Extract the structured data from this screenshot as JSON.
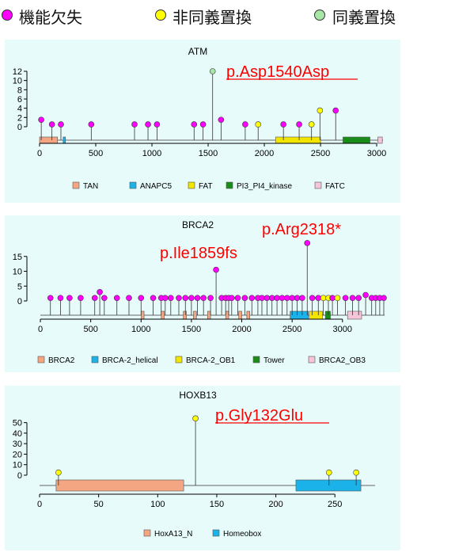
{
  "legend": [
    {
      "label": "機能欠失",
      "color": "#ff00ff",
      "icon": "magenta-circle-icon"
    },
    {
      "label": "非同義置換",
      "color": "#ffff00",
      "icon": "yellow-circle-icon"
    },
    {
      "label": "同義置換",
      "color": "#a8e6a8",
      "icon": "lightgreen-circle-icon"
    }
  ],
  "chart_data": [
    {
      "type": "lollipop",
      "title": "ATM",
      "xlim": [
        0,
        3056
      ],
      "ylim": [
        0,
        12
      ],
      "xticks": [
        0,
        500,
        1000,
        1500,
        2000,
        2500,
        3000
      ],
      "yticks": [
        0,
        2,
        4,
        6,
        8,
        10,
        12
      ],
      "annotation": {
        "text": "p.Asp1540Asp",
        "underline": true
      },
      "points": [
        {
          "x": 15,
          "y": 1.5,
          "type": "lof"
        },
        {
          "x": 110,
          "y": 0.5,
          "type": "lof"
        },
        {
          "x": 190,
          "y": 0.5,
          "type": "lof"
        },
        {
          "x": 460,
          "y": 0.5,
          "type": "lof"
        },
        {
          "x": 845,
          "y": 0.5,
          "type": "lof"
        },
        {
          "x": 965,
          "y": 0.5,
          "type": "lof"
        },
        {
          "x": 1045,
          "y": 0.5,
          "type": "lof"
        },
        {
          "x": 1375,
          "y": 0.5,
          "type": "lof"
        },
        {
          "x": 1455,
          "y": 0.5,
          "type": "lof"
        },
        {
          "x": 1540,
          "y": 12,
          "type": "syn"
        },
        {
          "x": 1615,
          "y": 1.5,
          "type": "lof"
        },
        {
          "x": 1830,
          "y": 0.5,
          "type": "lof"
        },
        {
          "x": 1945,
          "y": 0.5,
          "type": "mis"
        },
        {
          "x": 2170,
          "y": 0.5,
          "type": "lof"
        },
        {
          "x": 2310,
          "y": 0.5,
          "type": "lof"
        },
        {
          "x": 2420,
          "y": 0.5,
          "type": "mis"
        },
        {
          "x": 2495,
          "y": 3.5,
          "type": "mis"
        },
        {
          "x": 2635,
          "y": 3.5,
          "type": "lof"
        }
      ],
      "domains": [
        {
          "name": "TAN",
          "start": 0,
          "end": 160,
          "color": "#f4a582"
        },
        {
          "name": "ANAPC5",
          "start": 210,
          "end": 230,
          "color": "#1ab2e8"
        },
        {
          "name": "FAT",
          "start": 2100,
          "end": 2500,
          "color": "#f2e600"
        },
        {
          "name": "PI3_PI4_kinase",
          "start": 2700,
          "end": 2940,
          "color": "#1a8c1a"
        },
        {
          "name": "FATC",
          "start": 3010,
          "end": 3050,
          "color": "#f5c6d8"
        }
      ]
    },
    {
      "type": "lollipop",
      "title": "BRCA2",
      "xlim": [
        0,
        3418
      ],
      "ylim": [
        0,
        20
      ],
      "xticks": [
        0,
        500,
        1000,
        1500,
        2000,
        2500,
        3000
      ],
      "yticks": [
        0,
        5,
        10,
        15
      ],
      "annotations": [
        {
          "text": "p.Arg2318*",
          "underline": false
        },
        {
          "text": "p.Ile1859fs",
          "underline": false
        }
      ],
      "points": [
        {
          "x": 100,
          "y": 1,
          "type": "lof"
        },
        {
          "x": 200,
          "y": 1,
          "type": "lof"
        },
        {
          "x": 290,
          "y": 1,
          "type": "lof"
        },
        {
          "x": 400,
          "y": 1,
          "type": "lof"
        },
        {
          "x": 540,
          "y": 1,
          "type": "lof"
        },
        {
          "x": 590,
          "y": 3,
          "type": "lof"
        },
        {
          "x": 635,
          "y": 1,
          "type": "lof"
        },
        {
          "x": 760,
          "y": 1,
          "type": "lof"
        },
        {
          "x": 880,
          "y": 1,
          "type": "lof"
        },
        {
          "x": 1000,
          "y": 1,
          "type": "lof"
        },
        {
          "x": 1120,
          "y": 1,
          "type": "lof"
        },
        {
          "x": 1200,
          "y": 1,
          "type": "lof"
        },
        {
          "x": 1240,
          "y": 1,
          "type": "lof"
        },
        {
          "x": 1295,
          "y": 1,
          "type": "lof"
        },
        {
          "x": 1375,
          "y": 1,
          "type": "lof"
        },
        {
          "x": 1440,
          "y": 1,
          "type": "lof"
        },
        {
          "x": 1500,
          "y": 1,
          "type": "lof"
        },
        {
          "x": 1560,
          "y": 1,
          "type": "lof"
        },
        {
          "x": 1620,
          "y": 1,
          "type": "lof"
        },
        {
          "x": 1690,
          "y": 1,
          "type": "lof"
        },
        {
          "x": 1745,
          "y": 10.5,
          "type": "lof"
        },
        {
          "x": 1800,
          "y": 1,
          "type": "lof"
        },
        {
          "x": 1840,
          "y": 1,
          "type": "lof"
        },
        {
          "x": 1870,
          "y": 1,
          "type": "lof"
        },
        {
          "x": 1900,
          "y": 1,
          "type": "lof"
        },
        {
          "x": 1960,
          "y": 1,
          "type": "lof"
        },
        {
          "x": 2030,
          "y": 1,
          "type": "lof"
        },
        {
          "x": 2100,
          "y": 1,
          "type": "lof"
        },
        {
          "x": 2160,
          "y": 1,
          "type": "lof"
        },
        {
          "x": 2200,
          "y": 1,
          "type": "lof"
        },
        {
          "x": 2250,
          "y": 1,
          "type": "lof"
        },
        {
          "x": 2300,
          "y": 1,
          "type": "lof"
        },
        {
          "x": 2350,
          "y": 1,
          "type": "lof"
        },
        {
          "x": 2400,
          "y": 1,
          "type": "lof"
        },
        {
          "x": 2450,
          "y": 1,
          "type": "lof"
        },
        {
          "x": 2500,
          "y": 1,
          "type": "lof"
        },
        {
          "x": 2550,
          "y": 1,
          "type": "lof"
        },
        {
          "x": 2600,
          "y": 1,
          "type": "lof"
        },
        {
          "x": 2650,
          "y": 19.5,
          "type": "lof"
        },
        {
          "x": 2700,
          "y": 1,
          "type": "lof"
        },
        {
          "x": 2760,
          "y": 1,
          "type": "lof"
        },
        {
          "x": 2810,
          "y": 1,
          "type": "mis"
        },
        {
          "x": 2860,
          "y": 1,
          "type": "mis"
        },
        {
          "x": 2900,
          "y": 1,
          "type": "lof"
        },
        {
          "x": 2950,
          "y": 1,
          "type": "mis"
        },
        {
          "x": 3030,
          "y": 1,
          "type": "lof"
        },
        {
          "x": 3100,
          "y": 1,
          "type": "lof"
        },
        {
          "x": 3160,
          "y": 1,
          "type": "lof"
        },
        {
          "x": 3230,
          "y": 2,
          "type": "lof"
        },
        {
          "x": 3290,
          "y": 1,
          "type": "lof"
        },
        {
          "x": 3330,
          "y": 1,
          "type": "lof"
        },
        {
          "x": 3370,
          "y": 1,
          "type": "lof"
        },
        {
          "x": 3410,
          "y": 1,
          "type": "lof"
        }
      ],
      "domains": [
        {
          "name": "BRCA2",
          "start": 1000,
          "end": 1030,
          "color": "#f4a582"
        },
        {
          "name": "BRCA2",
          "start": 1200,
          "end": 1230,
          "color": "#f4a582"
        },
        {
          "name": "BRCA2",
          "start": 1420,
          "end": 1450,
          "color": "#f4a582"
        },
        {
          "name": "BRCA2",
          "start": 1520,
          "end": 1550,
          "color": "#f4a582"
        },
        {
          "name": "BRCA2",
          "start": 1660,
          "end": 1690,
          "color": "#f4a582"
        },
        {
          "name": "BRCA2",
          "start": 1840,
          "end": 1870,
          "color": "#f4a582"
        },
        {
          "name": "BRCA2",
          "start": 1970,
          "end": 2000,
          "color": "#f4a582"
        },
        {
          "name": "BRCA2",
          "start": 2050,
          "end": 2080,
          "color": "#f4a582"
        },
        {
          "name": "BRCA-2_helical",
          "start": 2480,
          "end": 2660,
          "color": "#1ab2e8"
        },
        {
          "name": "BRCA-2_OB1",
          "start": 2670,
          "end": 2800,
          "color": "#f2e600"
        },
        {
          "name": "Tower",
          "start": 2830,
          "end": 2880,
          "color": "#1a8c1a"
        },
        {
          "name": "BRCA2_OB3",
          "start": 3050,
          "end": 3190,
          "color": "#f5c6d8"
        }
      ],
      "legend": [
        {
          "name": "BRCA2",
          "color": "#f4a582"
        },
        {
          "name": "BRCA-2_helical",
          "color": "#1ab2e8"
        },
        {
          "name": "BRCA-2_OB1",
          "color": "#f2e600"
        },
        {
          "name": "Tower",
          "color": "#1a8c1a"
        },
        {
          "name": "BRCA2_OB3",
          "color": "#f5c6d8"
        }
      ]
    },
    {
      "type": "lollipop",
      "title": "HOXB13",
      "xlim": [
        0,
        284
      ],
      "ylim": [
        0,
        55
      ],
      "xticks": [
        0,
        50,
        100,
        150,
        200,
        250
      ],
      "yticks": [
        0,
        10,
        20,
        30,
        40,
        50
      ],
      "annotation": {
        "text": "p.Gly132Glu",
        "underline": true
      },
      "points": [
        {
          "x": 16,
          "y": 2.5,
          "type": "mis"
        },
        {
          "x": 132,
          "y": 54,
          "type": "mis"
        },
        {
          "x": 245,
          "y": 2.5,
          "type": "mis"
        },
        {
          "x": 268,
          "y": 2.5,
          "type": "mis"
        }
      ],
      "domains": [
        {
          "name": "HoxA13_N",
          "start": 14,
          "end": 122,
          "color": "#f4a582"
        },
        {
          "name": "Homeobox",
          "start": 217,
          "end": 272,
          "color": "#1ab2e8"
        }
      ]
    }
  ]
}
